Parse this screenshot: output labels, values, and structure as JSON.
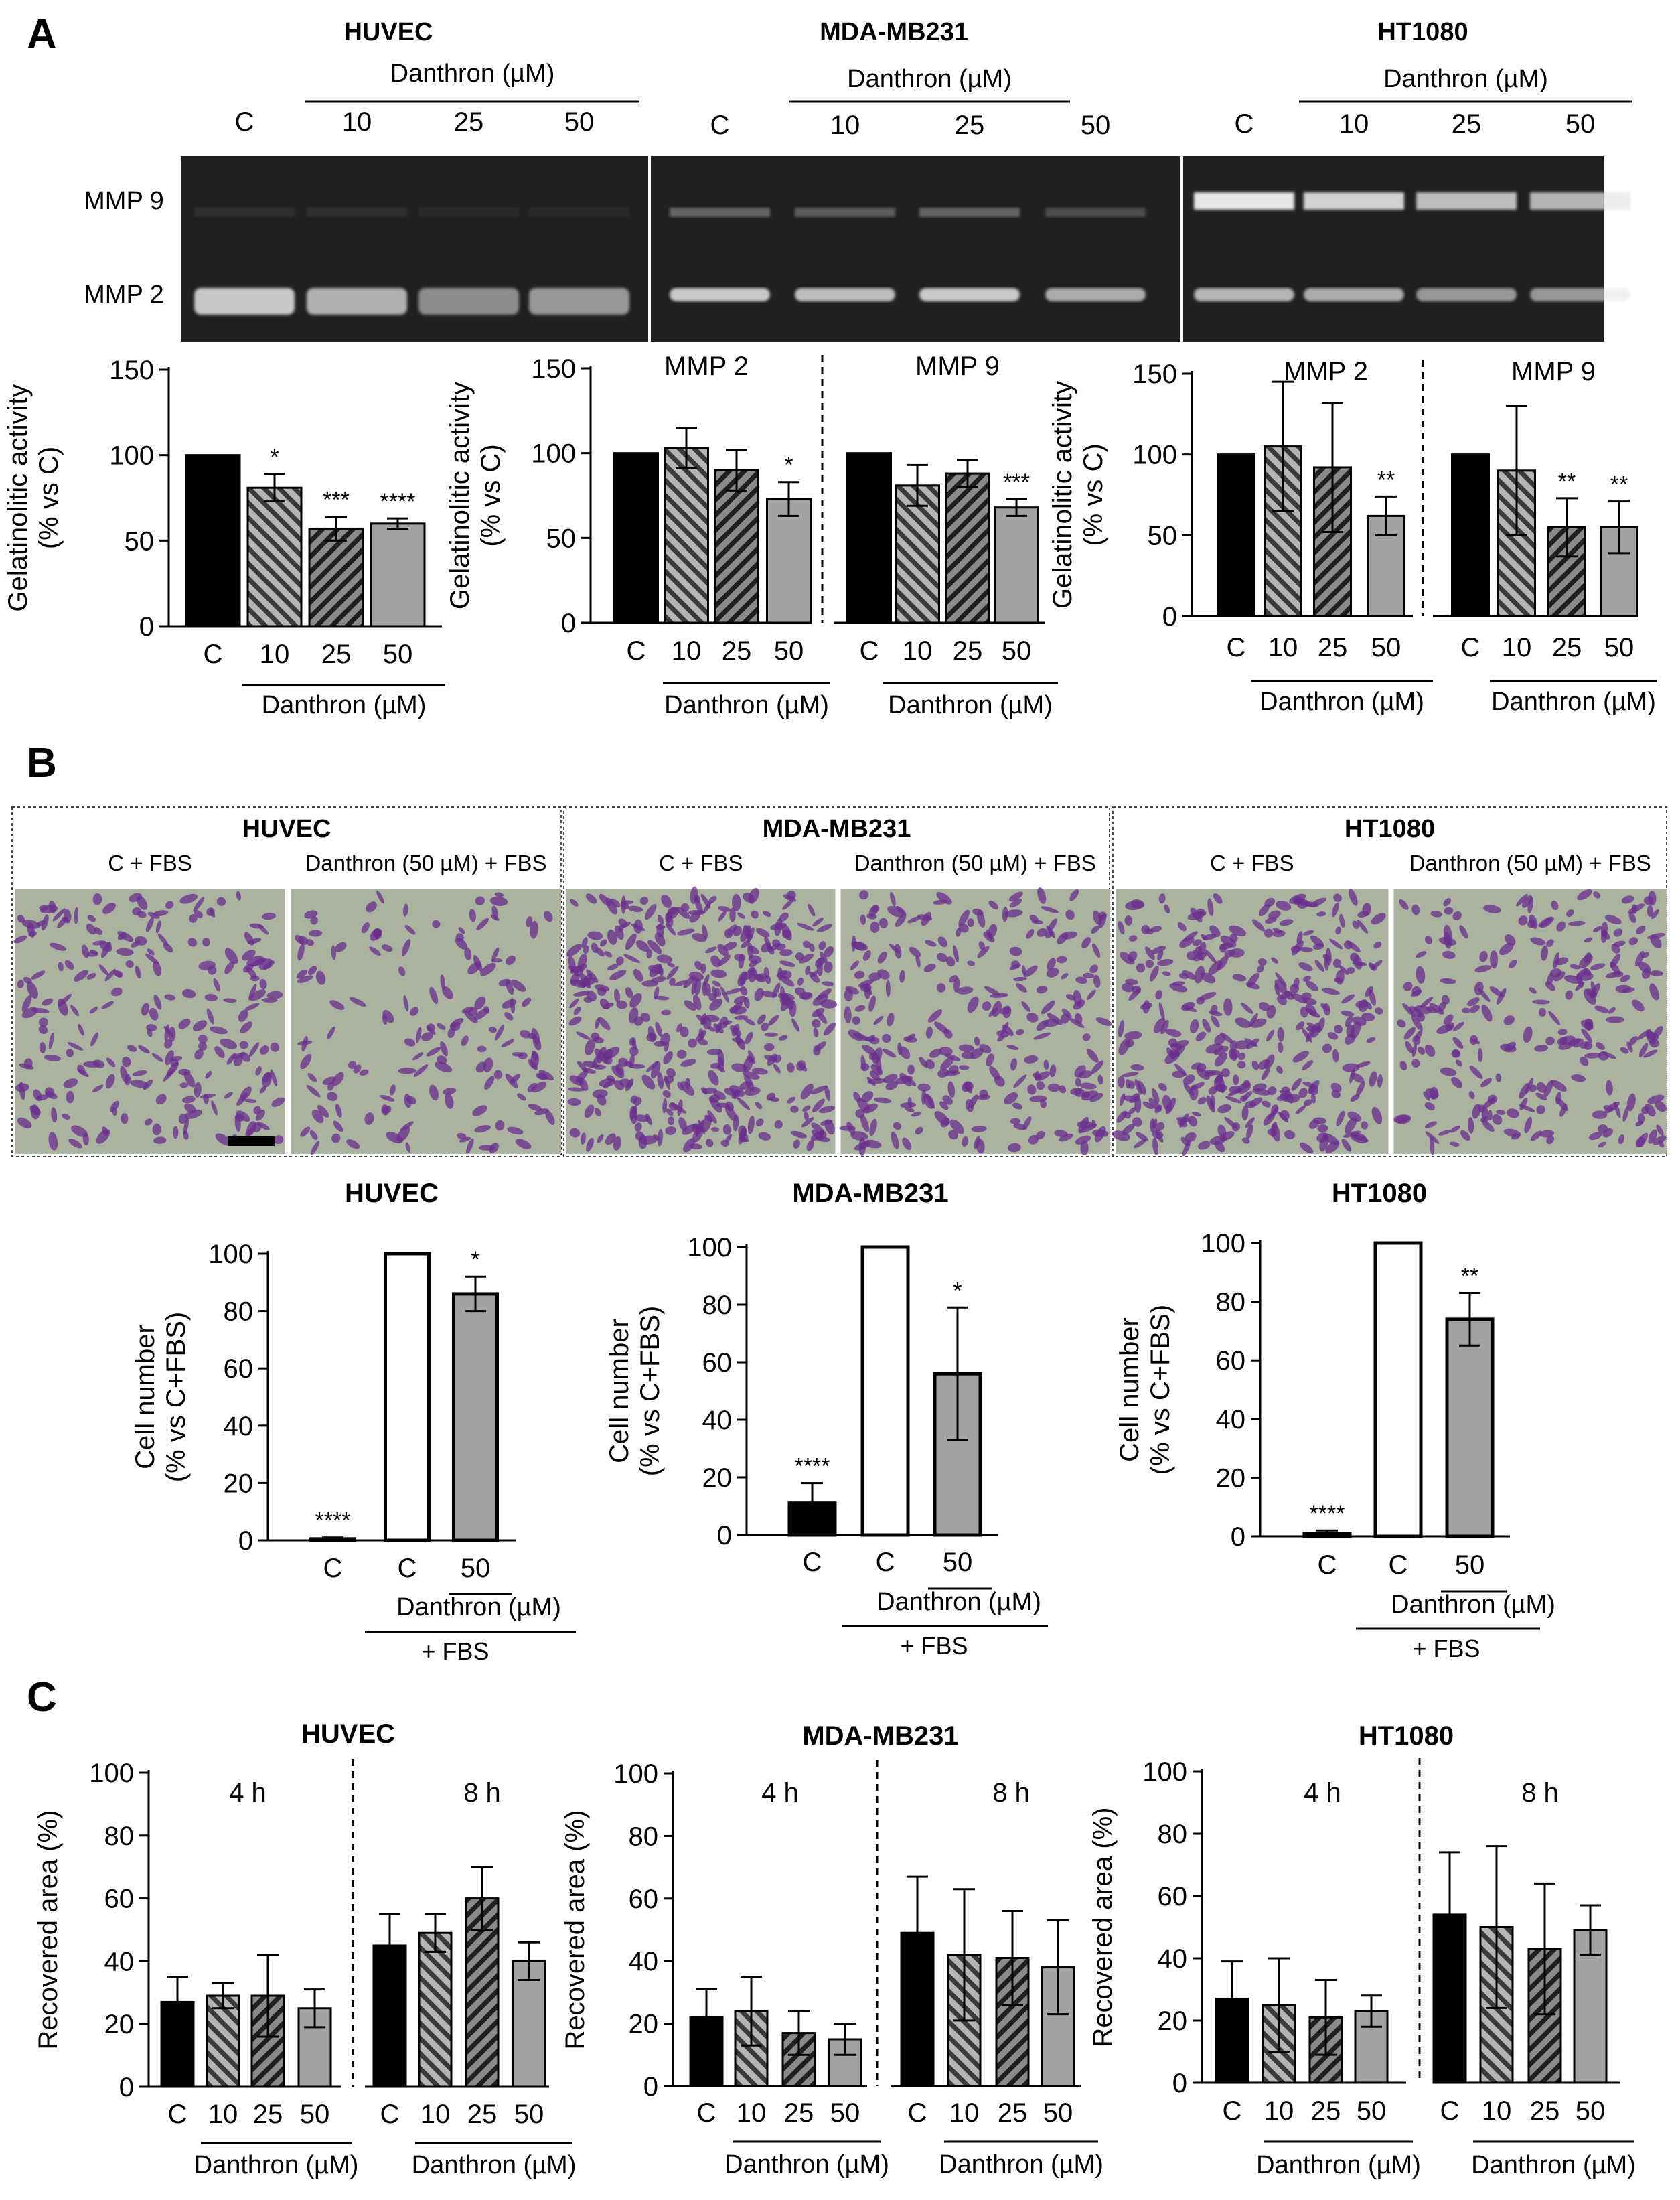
{
  "panels": {
    "a": "A",
    "b": "B",
    "c": "C"
  },
  "colors": {
    "black_bar": "#000000",
    "hatched_fill": "#8c8c8c",
    "dark_hatched_fill": "#3a3a3a",
    "gray_bar": "#a3a3a3",
    "white_bar": "#ffffff",
    "gel_bg": "#202020",
    "band": "#e6e6e6",
    "stain": "#6b2e8e",
    "micro_bg": "#a9b3a0"
  },
  "shared": {
    "danthron_um": "Danthron (µM)",
    "danthron_50_fbs": "Danthron (50 µM) + FBS",
    "c_fbs": "C + FBS",
    "plus_fbs": "+ FBS",
    "mmp2": "MMP 2",
    "mmp9": "MMP 9"
  },
  "panel_a": {
    "gels": [
      {
        "title": "HUVEC",
        "lanes": [
          "C",
          "10",
          "25",
          "50"
        ],
        "mmp9_intensity": [
          0.08,
          0.08,
          0.05,
          0.05
        ],
        "mmp2_intensity": [
          0.85,
          0.72,
          0.55,
          0.6
        ]
      },
      {
        "title": "MDA-MB231",
        "lanes": [
          "C",
          "10",
          "25",
          "50"
        ],
        "mmp9_intensity": [
          0.35,
          0.3,
          0.35,
          0.22
        ],
        "mmp2_intensity": [
          0.85,
          0.8,
          0.85,
          0.7
        ]
      },
      {
        "title": "HT1080",
        "lanes": [
          "C",
          "10",
          "25",
          "50"
        ],
        "mmp9_intensity": [
          1.0,
          0.9,
          0.8,
          0.75
        ],
        "mmp2_intensity": [
          0.75,
          0.7,
          0.6,
          0.6
        ]
      }
    ]
  },
  "chart_data": [
    {
      "id": "a-huvec",
      "type": "bar",
      "title": "",
      "ylabel": [
        "Gelatinolitic activity",
        "(% vs C)"
      ],
      "ylim": [
        0,
        150
      ],
      "yticks": [
        "0",
        "50",
        "100",
        "150"
      ],
      "xlabel": "Danthron (µM)",
      "groups": [
        {
          "label": "",
          "categories": [
            "C",
            "10",
            "25",
            "50"
          ],
          "values": [
            100,
            81,
            57,
            60
          ],
          "errors": [
            0,
            8,
            7,
            3
          ],
          "sig": [
            "",
            "*",
            "***",
            "****"
          ],
          "xlabel": "Danthron (µM)"
        }
      ]
    },
    {
      "id": "a-mda",
      "type": "bar",
      "title": "",
      "ylabel": [
        "Gelatinolitic activity",
        "(% vs C)"
      ],
      "ylim": [
        0,
        150
      ],
      "yticks": [
        "0",
        "50",
        "100",
        "150"
      ],
      "groups": [
        {
          "label": "MMP 2",
          "categories": [
            "C",
            "10",
            "25",
            "50"
          ],
          "values": [
            100,
            103,
            90,
            73
          ],
          "errors": [
            0,
            12,
            12,
            10
          ],
          "sig": [
            "",
            "",
            "",
            "*"
          ],
          "xlabel": "Danthron (µM)"
        },
        {
          "label": "MMP 9",
          "categories": [
            "C",
            "10",
            "25",
            "50"
          ],
          "values": [
            100,
            81,
            88,
            68
          ],
          "errors": [
            0,
            12,
            8,
            5
          ],
          "sig": [
            "",
            "",
            "",
            "***"
          ],
          "xlabel": "Danthron (µM)"
        }
      ]
    },
    {
      "id": "a-ht",
      "type": "bar",
      "title": "",
      "ylabel": [
        "Gelatinolitic activity",
        "(% vs C)"
      ],
      "ylim": [
        0,
        150
      ],
      "yticks": [
        "0",
        "50",
        "100",
        "150"
      ],
      "groups": [
        {
          "label": "MMP 2",
          "categories": [
            "C",
            "10",
            "25",
            "50"
          ],
          "values": [
            100,
            105,
            92,
            62
          ],
          "errors": [
            0,
            40,
            40,
            12
          ],
          "sig": [
            "",
            "",
            "",
            "**"
          ],
          "xlabel": "Danthron (µM)"
        },
        {
          "label": "MMP 9",
          "categories": [
            "C",
            "10",
            "25",
            "50"
          ],
          "values": [
            100,
            90,
            55,
            55
          ],
          "errors": [
            0,
            40,
            18,
            16
          ],
          "sig": [
            "",
            "",
            "**",
            "**"
          ],
          "xlabel": "Danthron (µM)"
        }
      ]
    },
    {
      "id": "b-huvec",
      "type": "bar",
      "title": "HUVEC",
      "ylabel": [
        "Cell number",
        "(% vs C+FBS)"
      ],
      "ylim": [
        0,
        100
      ],
      "yticks": [
        "0",
        "20",
        "40",
        "60",
        "80",
        "100"
      ],
      "categories": [
        "C",
        "C",
        "50"
      ],
      "values": [
        0.5,
        100,
        86
      ],
      "errors": [
        0.5,
        0,
        6
      ],
      "sig": [
        "****",
        "",
        "*"
      ],
      "xlabel": "Danthron (µM)",
      "xlabel2": "+ FBS"
    },
    {
      "id": "b-mda",
      "type": "bar",
      "title": "MDA-MB231",
      "ylabel": [
        "Cell number",
        "(% vs C+FBS)"
      ],
      "ylim": [
        0,
        100
      ],
      "yticks": [
        "0",
        "20",
        "40",
        "60",
        "80",
        "100"
      ],
      "categories": [
        "C",
        "C",
        "50"
      ],
      "values": [
        11,
        100,
        56
      ],
      "errors": [
        7,
        0,
        23
      ],
      "sig": [
        "****",
        "",
        "*"
      ],
      "xlabel": "Danthron (µM)",
      "xlabel2": "+ FBS"
    },
    {
      "id": "b-ht",
      "type": "bar",
      "title": "HT1080",
      "ylabel": [
        "Cell number",
        "(% vs C+FBS)"
      ],
      "ylim": [
        0,
        100
      ],
      "yticks": [
        "0",
        "20",
        "40",
        "60",
        "80",
        "100"
      ],
      "categories": [
        "C",
        "C",
        "50"
      ],
      "values": [
        1,
        100,
        74
      ],
      "errors": [
        1,
        0,
        9
      ],
      "sig": [
        "****",
        "",
        "**"
      ],
      "xlabel": "Danthron (µM)",
      "xlabel2": "+ FBS"
    },
    {
      "id": "c-huvec",
      "type": "bar",
      "title": "HUVEC",
      "ylabel": [
        "Recovered area (%)"
      ],
      "ylim": [
        0,
        100
      ],
      "yticks": [
        "0",
        "20",
        "40",
        "60",
        "80",
        "100"
      ],
      "groups": [
        {
          "label": "4 h",
          "categories": [
            "C",
            "10",
            "25",
            "50"
          ],
          "values": [
            27,
            29,
            29,
            25
          ],
          "errors": [
            8,
            4,
            13,
            6
          ],
          "sig": [
            "",
            "",
            "",
            ""
          ],
          "xlabel": "Danthron (µM)"
        },
        {
          "label": "8 h",
          "categories": [
            "C",
            "10",
            "25",
            "50"
          ],
          "values": [
            45,
            49,
            60,
            40
          ],
          "errors": [
            10,
            6,
            10,
            6
          ],
          "sig": [
            "",
            "",
            "",
            ""
          ],
          "xlabel": "Danthron (µM)"
        }
      ]
    },
    {
      "id": "c-mda",
      "type": "bar",
      "title": "MDA-MB231",
      "ylabel": [
        "Recovered area (%)"
      ],
      "ylim": [
        0,
        100
      ],
      "yticks": [
        "0",
        "20",
        "40",
        "60",
        "80",
        "100"
      ],
      "groups": [
        {
          "label": "4 h",
          "categories": [
            "C",
            "10",
            "25",
            "50"
          ],
          "values": [
            22,
            24,
            17,
            15
          ],
          "errors": [
            9,
            11,
            7,
            5
          ],
          "sig": [
            "",
            "",
            "",
            ""
          ],
          "xlabel": "Danthron (µM)"
        },
        {
          "label": "8 h",
          "categories": [
            "C",
            "10",
            "25",
            "50"
          ],
          "values": [
            49,
            42,
            41,
            38
          ],
          "errors": [
            18,
            21,
            15,
            15
          ],
          "sig": [
            "",
            "",
            "",
            ""
          ],
          "xlabel": "Danthron (µM)"
        }
      ]
    },
    {
      "id": "c-ht",
      "type": "bar",
      "title": "HT1080",
      "ylabel": [
        "Recovered area (%)"
      ],
      "ylim": [
        0,
        100
      ],
      "yticks": [
        "0",
        "20",
        "40",
        "60",
        "80",
        "100"
      ],
      "groups": [
        {
          "label": "4 h",
          "categories": [
            "C",
            "10",
            "25",
            "50"
          ],
          "values": [
            27,
            25,
            21,
            23
          ],
          "errors": [
            12,
            15,
            12,
            5
          ],
          "sig": [
            "",
            "",
            "",
            ""
          ],
          "xlabel": "Danthron (µM)"
        },
        {
          "label": "8 h",
          "categories": [
            "C",
            "10",
            "25",
            "50"
          ],
          "values": [
            54,
            50,
            43,
            49
          ],
          "errors": [
            20,
            26,
            21,
            8
          ],
          "sig": [
            "",
            "",
            "",
            ""
          ],
          "xlabel": "Danthron (µM)"
        }
      ]
    }
  ],
  "panel_b": {
    "micrographs": [
      {
        "title": "HUVEC",
        "left_label": "C + FBS",
        "right_label": "Danthron (50 µM) + FBS",
        "left_density": 0.55,
        "right_density": 0.38
      },
      {
        "title": "MDA-MB231",
        "left_label": "C + FBS",
        "right_label": "Danthron (50 µM) + FBS",
        "left_density": 1.0,
        "right_density": 0.65
      },
      {
        "title": "HT1080",
        "left_label": "C + FBS",
        "right_label": "Danthron (50 µM) + FBS",
        "left_density": 0.85,
        "right_density": 0.6
      }
    ]
  }
}
